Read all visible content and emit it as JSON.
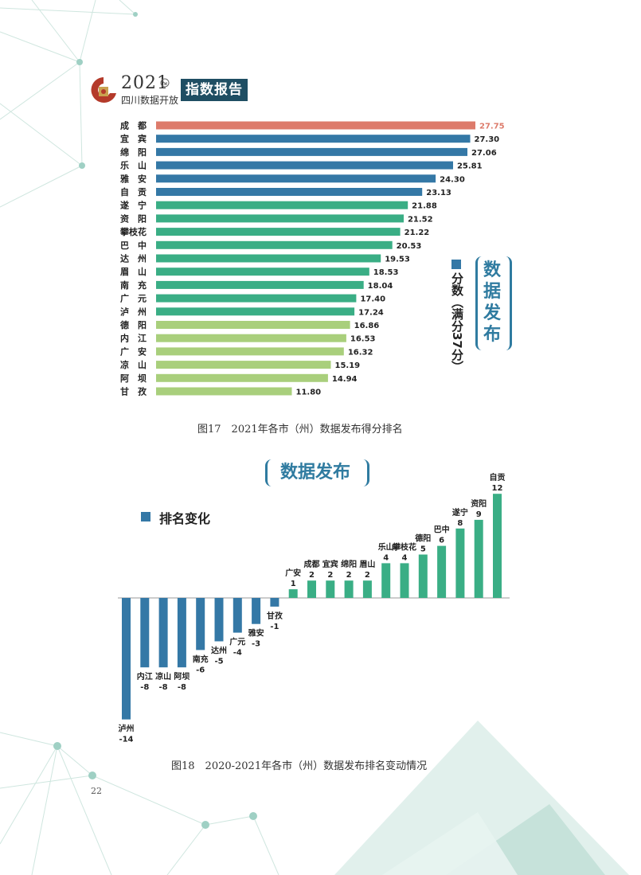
{
  "header": {
    "year": "2021",
    "subtitle": "四川数据开放",
    "report_label": "指数报告"
  },
  "colors": {
    "top": "#dd7b6b",
    "blue": "#3478a6",
    "green": "#3aae85",
    "light_green": "#a9cf7c",
    "title_box": "#1f4e63",
    "frame": "#2f7ba0"
  },
  "chart1": {
    "caption": "图17　2021年各市（州）数据发布得分排名",
    "side_title": "数据发布",
    "legend_label": "分数（满分37分）",
    "xlim": [
      0,
      37
    ]
  },
  "chart2": {
    "caption": "图18　2020-2021年各市（州）数据发布排名变动情况",
    "title": "数据发布",
    "legend_label": "排名变化"
  },
  "page_number": "22",
  "chart_data": [
    {
      "type": "bar",
      "orientation": "horizontal",
      "title": "数据发布",
      "legend": "分数（满分37分）",
      "xlim": [
        0,
        37
      ],
      "categories": [
        "成　都",
        "宜　宾",
        "绵　阳",
        "乐　山",
        "雅　安",
        "自　贡",
        "遂　宁",
        "资　阳",
        "攀枝花",
        "巴　中",
        "达　州",
        "眉　山",
        "南　充",
        "广　元",
        "泸　州",
        "德　阳",
        "内　江",
        "广　安",
        "凉　山",
        "阿　坝",
        "甘　孜"
      ],
      "values": [
        27.75,
        27.3,
        27.06,
        25.81,
        24.3,
        23.13,
        21.88,
        21.52,
        21.22,
        20.53,
        19.53,
        18.53,
        18.04,
        17.4,
        17.24,
        16.86,
        16.53,
        16.32,
        15.19,
        14.94,
        11.8
      ],
      "value_labels": [
        "27.75",
        "27.30",
        "27.06",
        "25.81",
        "24.30",
        "23.13",
        "21.88",
        "21.52",
        "21.22",
        "20.53",
        "19.53",
        "18.53",
        "18.04",
        "17.40",
        "17.24",
        "16.86",
        "16.53",
        "16.32",
        "15.19",
        "14.94",
        "11.80"
      ],
      "color_groups": [
        "top",
        "blue",
        "blue",
        "blue",
        "blue",
        "blue",
        "green",
        "green",
        "green",
        "green",
        "green",
        "green",
        "green",
        "green",
        "green",
        "light_green",
        "light_green",
        "light_green",
        "light_green",
        "light_green",
        "light_green"
      ]
    },
    {
      "type": "bar",
      "orientation": "vertical",
      "title": "数据发布",
      "legend": "排名变化",
      "categories": [
        "泸州",
        "内江",
        "凉山",
        "阿坝",
        "南充",
        "达州",
        "广元",
        "雅安",
        "甘孜",
        "广安",
        "成都",
        "宜宾",
        "绵阳",
        "眉山",
        "乐山",
        "攀枝花",
        "德阳",
        "巴中",
        "遂宁",
        "资阳",
        "自贡"
      ],
      "values": [
        -14,
        -8,
        -8,
        -8,
        -6,
        -5,
        -4,
        -3,
        -1,
        1,
        2,
        2,
        2,
        2,
        4,
        4,
        5,
        6,
        8,
        9,
        12
      ],
      "value_labels": [
        "-14",
        "-8",
        "-8",
        "-8",
        "-6",
        "-5",
        "-4",
        "-3",
        "-1",
        "1",
        "2",
        "2",
        "2",
        "2",
        "4",
        "4",
        "5",
        "6",
        "8",
        "9",
        "12"
      ]
    }
  ]
}
